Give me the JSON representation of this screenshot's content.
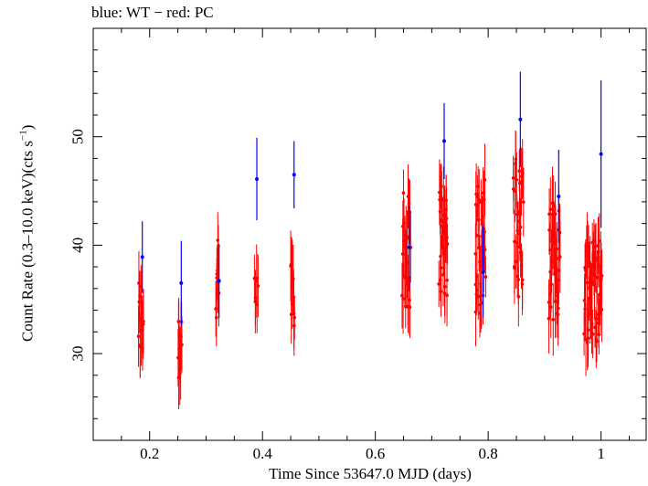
{
  "chart_data": {
    "type": "scatter",
    "title": "blue: WT − red: PC",
    "xlabel": "Time Since 53647.0 MJD (days)",
    "ylabel": "Count Rate (0.3–10.0 keV)(cts s⁻¹)",
    "ylabel_main": "Count Rate (0.3–10.0 keV)(cts s",
    "ylabel_sup": "−1",
    "ylabel_end": ")",
    "xlim": [
      0.1,
      1.08
    ],
    "ylim": [
      22,
      60
    ],
    "x_ticks": [
      0.2,
      0.4,
      0.6,
      0.8,
      1
    ],
    "x_tick_labels": [
      "0.2",
      "0.4",
      "0.6",
      "0.8",
      "1"
    ],
    "y_ticks": [
      30,
      40,
      50
    ],
    "y_tick_labels": [
      "30",
      "40",
      "50"
    ],
    "grid": false,
    "series": [
      {
        "name": "WT",
        "color": "#0000ff",
        "points": [
          {
            "x": 0.187,
            "y": 38.9,
            "err": 3.3
          },
          {
            "x": 0.256,
            "y": 36.5,
            "err": 3.9
          },
          {
            "x": 0.323,
            "y": 36.7,
            "err": 3.4
          },
          {
            "x": 0.39,
            "y": 46.1,
            "err": 3.8
          },
          {
            "x": 0.456,
            "y": 46.5,
            "err": 3.1
          },
          {
            "x": 0.66,
            "y": 39.8,
            "err": 3.8
          },
          {
            "x": 0.722,
            "y": 49.6,
            "err": 3.5
          },
          {
            "x": 0.791,
            "y": 37.5,
            "err": 4.2
          },
          {
            "x": 0.857,
            "y": 51.6,
            "err": 4.4
          },
          {
            "x": 0.925,
            "y": 44.5,
            "err": 4.3
          },
          {
            "x": 1.0,
            "y": 48.4,
            "err": 6.8
          }
        ]
      },
      {
        "name": "PC",
        "color": "#ff0000",
        "clusters": [
          {
            "x0": 0.18,
            "x1": 0.189,
            "lo": 29,
            "hi": 37.5,
            "n": 14
          },
          {
            "x0": 0.25,
            "x1": 0.257,
            "lo": 27,
            "hi": 35.5,
            "n": 12
          },
          {
            "x0": 0.317,
            "x1": 0.323,
            "lo": 31.5,
            "hi": 40.5,
            "n": 10
          },
          {
            "x0": 0.386,
            "x1": 0.392,
            "lo": 33.5,
            "hi": 37.5,
            "n": 7
          },
          {
            "x0": 0.45,
            "x1": 0.457,
            "lo": 32.5,
            "hi": 41,
            "n": 11
          },
          {
            "x0": 0.648,
            "x1": 0.662,
            "lo": 34,
            "hi": 45,
            "n": 28
          },
          {
            "x0": 0.713,
            "x1": 0.728,
            "lo": 35,
            "hi": 46.5,
            "n": 32
          },
          {
            "x0": 0.777,
            "x1": 0.795,
            "lo": 33.5,
            "hi": 46.5,
            "n": 36
          },
          {
            "x0": 0.845,
            "x1": 0.862,
            "lo": 35,
            "hi": 48.5,
            "n": 34
          },
          {
            "x0": 0.907,
            "x1": 0.927,
            "lo": 33,
            "hi": 44,
            "n": 38
          },
          {
            "x0": 0.97,
            "x1": 1.002,
            "lo": 31,
            "hi": 41.5,
            "n": 55
          }
        ]
      }
    ]
  }
}
